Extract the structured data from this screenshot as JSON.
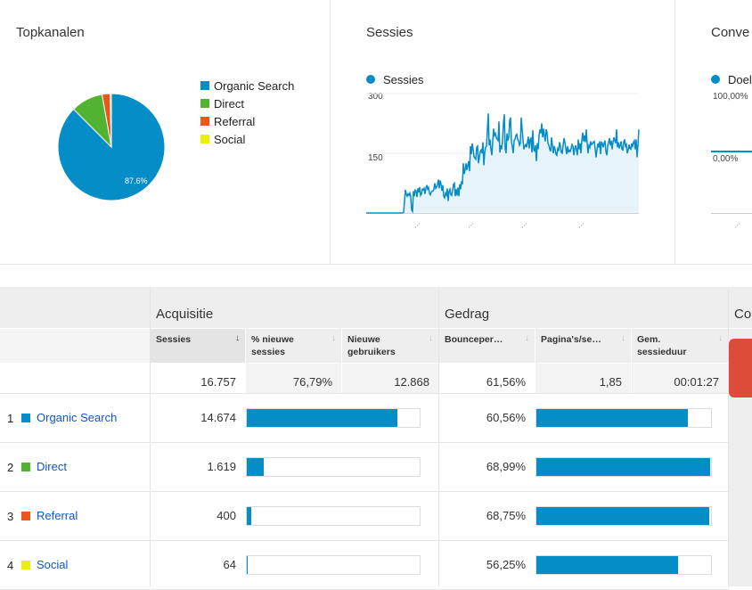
{
  "colors": {
    "organic": "#058dc7",
    "direct": "#50b432",
    "referral": "#ed561b",
    "social": "#edef00",
    "accent_blue": "#058dc7",
    "area_fill": "#e6f4fa"
  },
  "top_channels": {
    "title": "Topkanalen",
    "legend": [
      "Organic Search",
      "Direct",
      "Referral",
      "Social"
    ],
    "slice_label": "87.6%"
  },
  "sessions_panel": {
    "title": "Sessies",
    "legend": "Sessies",
    "y_ticks": [
      "300",
      "150"
    ],
    "x_ticks": [
      "...",
      "...",
      "...",
      "..."
    ]
  },
  "conversions_panel": {
    "title": "Conve",
    "legend": "Doel",
    "y_ticks": [
      "100,00%",
      "0,00%"
    ],
    "x_ticks": [
      "..."
    ]
  },
  "chart_data": [
    {
      "type": "pie",
      "categories": [
        "Organic Search",
        "Direct",
        "Referral",
        "Social"
      ],
      "values": [
        87.6,
        9.7,
        2.4,
        0.4
      ],
      "data_labels": [
        "87.6%"
      ]
    },
    {
      "type": "area",
      "legend": [
        "Sessies"
      ],
      "ylim": [
        0,
        300
      ],
      "y_ticks": [
        300,
        150
      ],
      "values": [
        0,
        0,
        0,
        0,
        0,
        0,
        0,
        0,
        0,
        0,
        0,
        0,
        0,
        0,
        0,
        0,
        0,
        0,
        0,
        0,
        0,
        0,
        0,
        0,
        0,
        0,
        0,
        0,
        0,
        0,
        0,
        0,
        0,
        0,
        0,
        0,
        0,
        0,
        0,
        0,
        0,
        0,
        2,
        30,
        58,
        48,
        42,
        48,
        44,
        50,
        42,
        8,
        4,
        55,
        42,
        58,
        56,
        40,
        62,
        52,
        65,
        44,
        48,
        60,
        58,
        62,
        48,
        62,
        70,
        60,
        64,
        50,
        46,
        52,
        55,
        55,
        60,
        75,
        62,
        65,
        72,
        84,
        62,
        82,
        72,
        56,
        70,
        42,
        38,
        50,
        45,
        62,
        30,
        55,
        60,
        46,
        44,
        58,
        72,
        75,
        42,
        60,
        44,
        64,
        42,
        72,
        60,
        80,
        72,
        125,
        98,
        108,
        125,
        108,
        120,
        130,
        105,
        168,
        148,
        175,
        160,
        142,
        138,
        135,
        165,
        168,
        125,
        140,
        155,
        158,
        150,
        178,
        120,
        152,
        165,
        168,
        210,
        250,
        170,
        185,
        160,
        145,
        180,
        212,
        195,
        200,
        190,
        185,
        182,
        230,
        152,
        170,
        160,
        180,
        225,
        248,
        162,
        150,
        200,
        182,
        190,
        232,
        240,
        178,
        168,
        150,
        182,
        185,
        195,
        198,
        185,
        182,
        170,
        175,
        240,
        210,
        185,
        160,
        168,
        172,
        165,
        178,
        192,
        162,
        185,
        188,
        152,
        208,
        158,
        156,
        170,
        130,
        175,
        160,
        195,
        210,
        200,
        225,
        190,
        212,
        195,
        180,
        210,
        202,
        175,
        170,
        160,
        155,
        190,
        172,
        150,
        168,
        160,
        148,
        145,
        162,
        158,
        178,
        168,
        152,
        150,
        170,
        188,
        178,
        162,
        148,
        168,
        152,
        158,
        155,
        162,
        172,
        168,
        145,
        162,
        170,
        158,
        145,
        185,
        160,
        175,
        150,
        182,
        202,
        180,
        195,
        178,
        210,
        175,
        150,
        170,
        165,
        180,
        172,
        175,
        178,
        180,
        160,
        140,
        158,
        175,
        165,
        180,
        148,
        178,
        175,
        165,
        175,
        182,
        155,
        145,
        168,
        178,
        188,
        170,
        182,
        160,
        178,
        190,
        182,
        175,
        210,
        165,
        178,
        162,
        170,
        180,
        160,
        158,
        178,
        185,
        168,
        172,
        150,
        158,
        172,
        162,
        160,
        175,
        168,
        178,
        182,
        160,
        185,
        140,
        170,
        210
      ],
      "note_on_x": "x axis tick labels not legible"
    }
  ],
  "table": {
    "groups": {
      "acquisition": "Acquisitie",
      "behavior": "Gedrag",
      "conversions": "Co"
    },
    "columns": {
      "sessions": "Sessies",
      "pct_new": "% nieuwe sessies",
      "new_users": "Nieuwe gebruikers",
      "bounce": "Bounceper…",
      "pages": "Pagina's/se…",
      "duration": "Gem. sessieduur"
    },
    "totals": {
      "sessions": "16.757",
      "pct_new": "76,79%",
      "new_users": "12.868",
      "bounce": "61,56%",
      "pages": "1,85",
      "duration": "00:01:27"
    },
    "rows": [
      {
        "index": "1",
        "name": "Organic Search",
        "sessions": "14.674",
        "bounce": "60,56%",
        "sessions_bar": 0.872,
        "pages_bar": 0.866
      },
      {
        "index": "2",
        "name": "Direct",
        "sessions": "1.619",
        "bounce": "68,99%",
        "sessions_bar": 0.096,
        "pages_bar": 0.995
      },
      {
        "index": "3",
        "name": "Referral",
        "sessions": "400",
        "bounce": "68,75%",
        "sessions_bar": 0.024,
        "pages_bar": 0.99
      },
      {
        "index": "4",
        "name": "Social",
        "sessions": "64",
        "bounce": "56,25%",
        "sessions_bar": 0.004,
        "pages_bar": 0.81
      }
    ]
  }
}
